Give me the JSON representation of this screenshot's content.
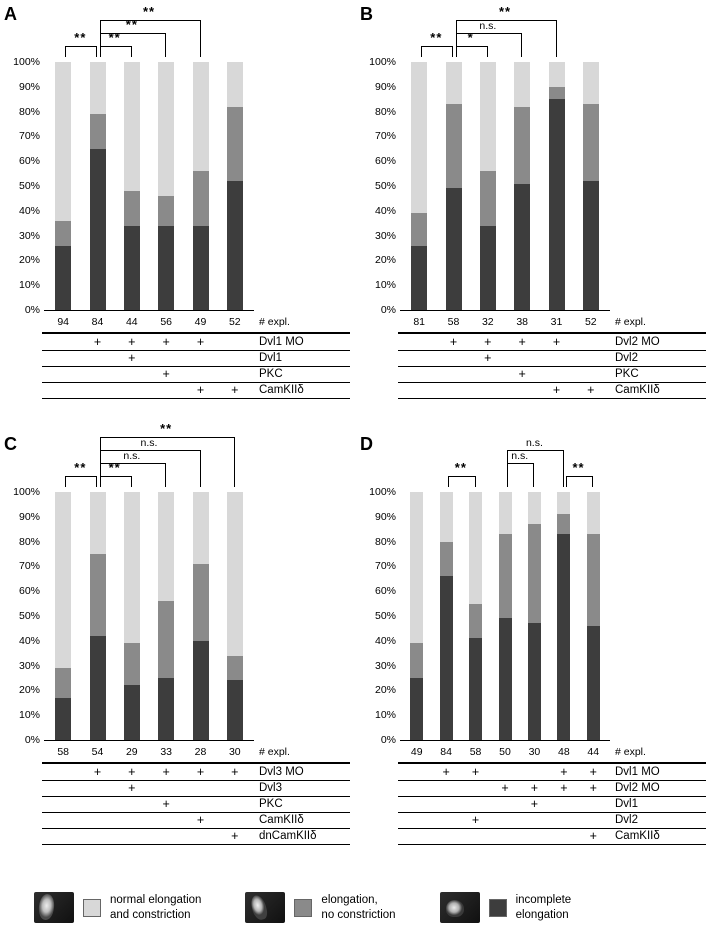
{
  "colors": {
    "normal": "#d8d8d8",
    "no_constriction": "#8a8a8a",
    "incomplete": "#3d3d3d"
  },
  "chart_data": [
    {
      "type": "stacked-bar",
      "panel": "A",
      "ylim": [
        0,
        100
      ],
      "unit": "%",
      "yticks": [
        "0%",
        "10%",
        "20%",
        "30%",
        "40%",
        "50%",
        "60%",
        "70%",
        "80%",
        "90%",
        "100%"
      ],
      "n_row_label": "# expl.",
      "series_names": [
        "incomplete elongation",
        "elongation, no constriction",
        "normal elongation and constriction"
      ],
      "bars": [
        {
          "n": "94",
          "incomplete": 26,
          "no_constriction": 10,
          "normal": 64
        },
        {
          "n": "84",
          "incomplete": 65,
          "no_constriction": 14,
          "normal": 21
        },
        {
          "n": "44",
          "incomplete": 34,
          "no_constriction": 14,
          "normal": 52
        },
        {
          "n": "56",
          "incomplete": 34,
          "no_constriction": 12,
          "normal": 54
        },
        {
          "n": "49",
          "incomplete": 34,
          "no_constriction": 22,
          "normal": 44
        },
        {
          "n": "52",
          "incomplete": 52,
          "no_constriction": 30,
          "normal": 18
        }
      ],
      "condition_rows": [
        {
          "label": "Dvl1 MO",
          "plus": [
            0,
            1,
            1,
            1,
            1,
            0
          ]
        },
        {
          "label": "Dvl1",
          "plus": [
            0,
            0,
            1,
            0,
            0,
            0
          ]
        },
        {
          "label": "PKC",
          "plus": [
            0,
            0,
            0,
            1,
            0,
            0
          ]
        },
        {
          "label": "CamKIIδ",
          "plus": [
            0,
            0,
            0,
            0,
            1,
            1
          ]
        }
      ],
      "significance": [
        {
          "from": 0,
          "to": 1,
          "label": "**",
          "level": 0
        },
        {
          "from": 1,
          "to": 2,
          "label": "**",
          "level": 0
        },
        {
          "from": 1,
          "to": 3,
          "label": "**",
          "level": 1
        },
        {
          "from": 1,
          "to": 4,
          "label": "**",
          "level": 2
        }
      ]
    },
    {
      "type": "stacked-bar",
      "panel": "B",
      "ylim": [
        0,
        100
      ],
      "unit": "%",
      "yticks": [
        "0%",
        "10%",
        "20%",
        "30%",
        "40%",
        "50%",
        "60%",
        "70%",
        "80%",
        "90%",
        "100%"
      ],
      "n_row_label": "# expl.",
      "series_names": [
        "incomplete elongation",
        "elongation, no constriction",
        "normal elongation and constriction"
      ],
      "bars": [
        {
          "n": "81",
          "incomplete": 26,
          "no_constriction": 13,
          "normal": 61
        },
        {
          "n": "58",
          "incomplete": 49,
          "no_constriction": 34,
          "normal": 17
        },
        {
          "n": "32",
          "incomplete": 34,
          "no_constriction": 22,
          "normal": 44
        },
        {
          "n": "38",
          "incomplete": 51,
          "no_constriction": 31,
          "normal": 18
        },
        {
          "n": "31",
          "incomplete": 85,
          "no_constriction": 5,
          "normal": 10
        },
        {
          "n": "52",
          "incomplete": 52,
          "no_constriction": 31,
          "normal": 17
        }
      ],
      "condition_rows": [
        {
          "label": "Dvl2 MO",
          "plus": [
            0,
            1,
            1,
            1,
            1,
            0
          ]
        },
        {
          "label": "Dvl2",
          "plus": [
            0,
            0,
            1,
            0,
            0,
            0
          ]
        },
        {
          "label": "PKC",
          "plus": [
            0,
            0,
            0,
            1,
            0,
            0
          ]
        },
        {
          "label": "CamKIIδ",
          "plus": [
            0,
            0,
            0,
            0,
            1,
            1
          ]
        }
      ],
      "significance": [
        {
          "from": 0,
          "to": 1,
          "label": "**",
          "level": 0
        },
        {
          "from": 1,
          "to": 2,
          "label": "*",
          "level": 0
        },
        {
          "from": 1,
          "to": 3,
          "label": "n.s.",
          "level": 1
        },
        {
          "from": 1,
          "to": 4,
          "label": "**",
          "level": 2
        }
      ]
    },
    {
      "type": "stacked-bar",
      "panel": "C",
      "ylim": [
        0,
        100
      ],
      "unit": "%",
      "yticks": [
        "0%",
        "10%",
        "20%",
        "30%",
        "40%",
        "50%",
        "60%",
        "70%",
        "80%",
        "90%",
        "100%"
      ],
      "n_row_label": "# expl.",
      "series_names": [
        "incomplete elongation",
        "elongation, no constriction",
        "normal elongation and constriction"
      ],
      "bars": [
        {
          "n": "58",
          "incomplete": 17,
          "no_constriction": 12,
          "normal": 71
        },
        {
          "n": "54",
          "incomplete": 42,
          "no_constriction": 33,
          "normal": 25
        },
        {
          "n": "29",
          "incomplete": 22,
          "no_constriction": 17,
          "normal": 61
        },
        {
          "n": "33",
          "incomplete": 25,
          "no_constriction": 31,
          "normal": 44
        },
        {
          "n": "28",
          "incomplete": 40,
          "no_constriction": 31,
          "normal": 29
        },
        {
          "n": "30",
          "incomplete": 24,
          "no_constriction": 10,
          "normal": 66
        }
      ],
      "condition_rows": [
        {
          "label": "Dvl3 MO",
          "plus": [
            0,
            1,
            1,
            1,
            1,
            1
          ]
        },
        {
          "label": "Dvl3",
          "plus": [
            0,
            0,
            1,
            0,
            0,
            0
          ]
        },
        {
          "label": "PKC",
          "plus": [
            0,
            0,
            0,
            1,
            0,
            0
          ]
        },
        {
          "label": "CamKIIδ",
          "plus": [
            0,
            0,
            0,
            0,
            1,
            0
          ]
        },
        {
          "label": "dnCamKIIδ",
          "plus": [
            0,
            0,
            0,
            0,
            0,
            1
          ]
        }
      ],
      "significance": [
        {
          "from": 0,
          "to": 1,
          "label": "**",
          "level": 0
        },
        {
          "from": 1,
          "to": 2,
          "label": "**",
          "level": 0
        },
        {
          "from": 1,
          "to": 3,
          "label": "n.s.",
          "level": 1
        },
        {
          "from": 1,
          "to": 4,
          "label": "n.s.",
          "level": 2
        },
        {
          "from": 1,
          "to": 5,
          "label": "**",
          "level": 3
        }
      ]
    },
    {
      "type": "stacked-bar",
      "panel": "D",
      "ylim": [
        0,
        100
      ],
      "unit": "%",
      "yticks": [
        "0%",
        "10%",
        "20%",
        "30%",
        "40%",
        "50%",
        "60%",
        "70%",
        "80%",
        "90%",
        "100%"
      ],
      "n_row_label": "# expl.",
      "series_names": [
        "incomplete elongation",
        "elongation, no constriction",
        "normal elongation and constriction"
      ],
      "bars": [
        {
          "n": "49",
          "incomplete": 25,
          "no_constriction": 14,
          "normal": 61
        },
        {
          "n": "84",
          "incomplete": 66,
          "no_constriction": 14,
          "normal": 20
        },
        {
          "n": "58",
          "incomplete": 41,
          "no_constriction": 14,
          "normal": 45
        },
        {
          "n": "50",
          "incomplete": 49,
          "no_constriction": 34,
          "normal": 17
        },
        {
          "n": "30",
          "incomplete": 47,
          "no_constriction": 40,
          "normal": 13
        },
        {
          "n": "48",
          "incomplete": 83,
          "no_constriction": 8,
          "normal": 9
        },
        {
          "n": "44",
          "incomplete": 46,
          "no_constriction": 37,
          "normal": 17
        }
      ],
      "condition_rows": [
        {
          "label": "Dvl1 MO",
          "plus": [
            0,
            1,
            1,
            0,
            0,
            1,
            1
          ]
        },
        {
          "label": "Dvl2 MO",
          "plus": [
            0,
            0,
            0,
            1,
            1,
            1,
            1
          ]
        },
        {
          "label": "Dvl1",
          "plus": [
            0,
            0,
            0,
            0,
            1,
            0,
            0
          ]
        },
        {
          "label": "Dvl2",
          "plus": [
            0,
            0,
            1,
            0,
            0,
            0,
            0
          ]
        },
        {
          "label": "CamKIIδ",
          "plus": [
            0,
            0,
            0,
            0,
            0,
            0,
            1
          ]
        }
      ],
      "significance": [
        {
          "from": 1,
          "to": 2,
          "label": "**",
          "level": 0
        },
        {
          "from": 3,
          "to": 4,
          "label": "n.s.",
          "level": 1
        },
        {
          "from": 3,
          "to": 5,
          "label": "n.s.",
          "level": 2
        },
        {
          "from": 5,
          "to": 6,
          "label": "**",
          "level": 0
        }
      ]
    }
  ],
  "legend": {
    "items": [
      {
        "thumb_name": "embryo-normal-photo",
        "swatch_color": "#d8d8d8",
        "lines": [
          "normal elongation",
          "and constriction"
        ]
      },
      {
        "thumb_name": "embryo-elongated-photo",
        "swatch_color": "#8a8a8a",
        "lines": [
          "elongation,",
          "no constriction"
        ]
      },
      {
        "thumb_name": "embryo-incomplete-photo",
        "swatch_color": "#3d3d3d",
        "lines": [
          "incomplete",
          "elongation"
        ]
      }
    ]
  }
}
